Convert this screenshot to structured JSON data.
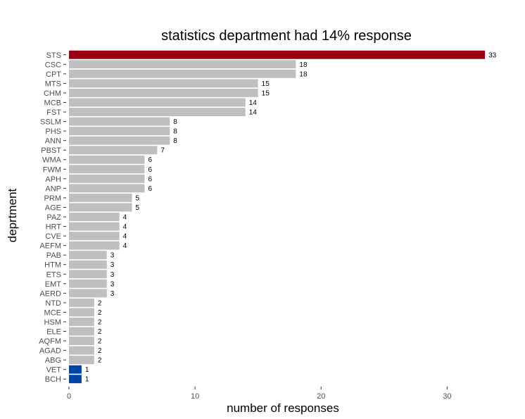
{
  "chart_data": {
    "type": "bar",
    "orientation": "horizontal",
    "title": "statistics department had 14% response",
    "xlabel": "number of responses",
    "ylabel": "deprtment",
    "xlim": [
      0,
      34
    ],
    "x_ticks": [
      0,
      10,
      20,
      30
    ],
    "grid": false,
    "legend": "none",
    "categories": [
      "STS",
      "CSC",
      "CPT",
      "MTS",
      "CHM",
      "MCB",
      "FST",
      "SSLM",
      "PHS",
      "ANN",
      "PBST",
      "WMA",
      "FWM",
      "APH",
      "ANP",
      "PRM",
      "AGE",
      "PAZ",
      "HRT",
      "CVE",
      "AEFM",
      "PAB",
      "HTM",
      "ETS",
      "EMT",
      "AERD",
      "NTD",
      "MCE",
      "HSM",
      "ELE",
      "AQFM",
      "AGAD",
      "ABG",
      "VET",
      "BCH"
    ],
    "values": [
      33,
      18,
      18,
      15,
      15,
      14,
      14,
      8,
      8,
      8,
      7,
      6,
      6,
      6,
      6,
      5,
      5,
      4,
      4,
      4,
      4,
      3,
      3,
      3,
      3,
      3,
      2,
      2,
      2,
      2,
      2,
      2,
      2,
      1,
      1
    ],
    "bar_colors": [
      "#990011",
      "#bfbfbf",
      "#bfbfbf",
      "#bfbfbf",
      "#bfbfbf",
      "#bfbfbf",
      "#bfbfbf",
      "#bfbfbf",
      "#bfbfbf",
      "#bfbfbf",
      "#bfbfbf",
      "#bfbfbf",
      "#bfbfbf",
      "#bfbfbf",
      "#bfbfbf",
      "#bfbfbf",
      "#bfbfbf",
      "#bfbfbf",
      "#bfbfbf",
      "#bfbfbf",
      "#bfbfbf",
      "#bfbfbf",
      "#bfbfbf",
      "#bfbfbf",
      "#bfbfbf",
      "#bfbfbf",
      "#bfbfbf",
      "#bfbfbf",
      "#bfbfbf",
      "#bfbfbf",
      "#bfbfbf",
      "#bfbfbf",
      "#bfbfbf",
      "#0044aa",
      "#0044aa"
    ]
  }
}
